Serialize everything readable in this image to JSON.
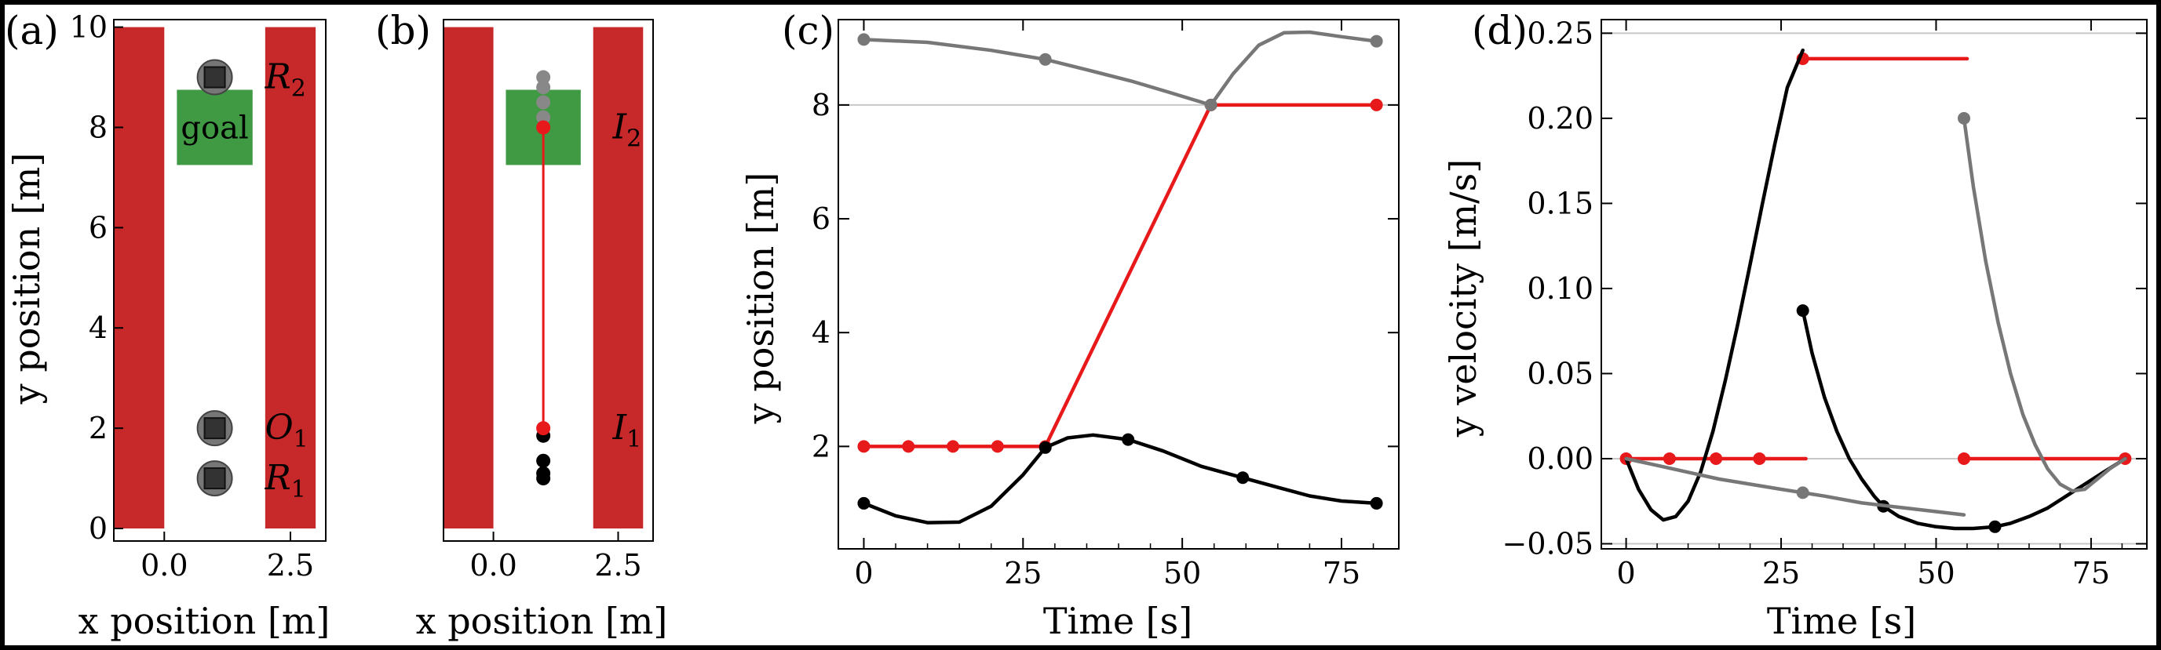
{
  "chart_data": [
    {
      "panel": "(a)",
      "type": "scatter",
      "xlabel": "x position [m]",
      "ylabel": "y position [m]",
      "xlim": [
        -1.0,
        3.2
      ],
      "ylim": [
        -0.25,
        10.15
      ],
      "xticks": [
        "0.0",
        "2.5"
      ],
      "yticks": [
        "0",
        "2",
        "4",
        "6",
        "8",
        "10"
      ],
      "walls": [
        {
          "x": [
            -1.0,
            0.0
          ],
          "y": [
            0,
            10
          ]
        },
        {
          "x": [
            2.0,
            3.0
          ],
          "y": [
            0,
            10
          ]
        }
      ],
      "goal": {
        "label": "goal",
        "x": [
          0.25,
          1.75
        ],
        "y": [
          7.25,
          8.75
        ]
      },
      "robots": [
        {
          "name": "R2",
          "label": "R",
          "sub": "2",
          "x": 1.0,
          "y": 9.0
        },
        {
          "name": "O1",
          "label": "O",
          "sub": "1",
          "x": 1.0,
          "y": 2.0
        },
        {
          "name": "R1",
          "label": "R",
          "sub": "1",
          "x": 1.0,
          "y": 1.0
        }
      ]
    },
    {
      "panel": "(b)",
      "type": "scatter",
      "xlabel": "x position [m]",
      "ylabel": "",
      "xlim": [
        -1.0,
        3.2
      ],
      "ylim": [
        -0.25,
        10.15
      ],
      "xticks": [
        "0.0",
        "2.5"
      ],
      "walls": [
        {
          "x": [
            -1.0,
            0.0
          ],
          "y": [
            0,
            10
          ]
        },
        {
          "x": [
            2.0,
            3.0
          ],
          "y": [
            0,
            10
          ]
        }
      ],
      "goal": {
        "x": [
          0.25,
          1.75
        ],
        "y": [
          7.25,
          8.75
        ]
      },
      "path": {
        "x": [
          1.0,
          1.0
        ],
        "y": [
          2.0,
          8.0
        ],
        "color": "#e8191a"
      },
      "points": [
        {
          "series": "black",
          "x": 1.0,
          "y": 1.0
        },
        {
          "series": "black",
          "x": 1.0,
          "y": 1.1
        },
        {
          "series": "black",
          "x": 1.0,
          "y": 1.35
        },
        {
          "series": "black",
          "x": 1.0,
          "y": 1.85
        },
        {
          "series": "red",
          "x": 1.0,
          "y": 2.0
        },
        {
          "series": "gray",
          "x": 1.0,
          "y": 9.0
        },
        {
          "series": "gray",
          "x": 1.0,
          "y": 8.8
        },
        {
          "series": "gray",
          "x": 1.0,
          "y": 8.5
        },
        {
          "series": "gray",
          "x": 1.0,
          "y": 8.2
        },
        {
          "series": "red",
          "x": 1.0,
          "y": 8.0
        }
      ],
      "annotations": [
        {
          "name": "I1",
          "label": "I",
          "sub": "1",
          "x": 2.55,
          "y": 2.0
        },
        {
          "name": "I2",
          "label": "I",
          "sub": "2",
          "x": 2.55,
          "y": 8.0
        }
      ]
    },
    {
      "panel": "(c)",
      "type": "line",
      "xlabel": "Time [s]",
      "ylabel": "y position [m]",
      "xlim": [
        -4,
        84
      ],
      "ylim": [
        0.2,
        9.5
      ],
      "xticks": [
        0,
        25,
        50,
        75
      ],
      "yticks": [
        2,
        4,
        6,
        8
      ],
      "reference_lines": [
        8
      ],
      "series": [
        {
          "color": "#e8191a",
          "x": [
            0,
            7,
            14,
            21,
            28.5,
            54.5,
            80.5
          ],
          "y": [
            2.0,
            2.0,
            2.0,
            2.0,
            2.0,
            8.0,
            8.0
          ],
          "markers_x": [
            0,
            7,
            14,
            21,
            28.5,
            54.5,
            80.5
          ],
          "markers_y": [
            2.0,
            2.0,
            2.0,
            2.0,
            2.0,
            8.0,
            8.0
          ]
        },
        {
          "color": "#000000",
          "x": [
            0,
            5,
            10,
            15,
            20,
            25,
            28.5,
            32,
            36,
            41.5,
            47,
            53,
            59.5,
            65,
            70,
            75,
            80.5
          ],
          "y": [
            1.0,
            0.78,
            0.66,
            0.67,
            0.95,
            1.5,
            1.98,
            2.15,
            2.2,
            2.12,
            1.92,
            1.65,
            1.45,
            1.28,
            1.13,
            1.04,
            1.0
          ],
          "markers_x": [
            0,
            28.5,
            41.5,
            59.5,
            80.5
          ],
          "markers_y": [
            1.0,
            1.98,
            2.12,
            1.45,
            1.0
          ]
        },
        {
          "color": "#777777",
          "x": [
            0,
            10,
            20,
            28.5,
            35,
            42,
            48,
            54.5,
            58,
            62,
            66,
            70,
            75,
            80.5
          ],
          "y": [
            9.15,
            9.1,
            8.96,
            8.8,
            8.62,
            8.42,
            8.22,
            8.0,
            8.55,
            9.05,
            9.27,
            9.28,
            9.2,
            9.12
          ],
          "markers_x": [
            0,
            28.5,
            54.5,
            80.5
          ],
          "markers_y": [
            9.15,
            8.8,
            8.0,
            9.12
          ]
        }
      ]
    },
    {
      "panel": "(d)",
      "type": "line",
      "xlabel": "Time [s]",
      "ylabel": "y velocity [m/s]",
      "xlim": [
        -4,
        84
      ],
      "ylim": [
        -0.053,
        0.258
      ],
      "xticks": [
        0,
        25,
        50,
        75
      ],
      "yticks": [
        "−0.05",
        "0.00",
        "0.05",
        "0.10",
        "0.15",
        "0.20",
        "0.25"
      ],
      "reference_lines": [
        0.0,
        0.25,
        -0.05
      ],
      "series": [
        {
          "color": "#e8191a",
          "x": [
            0,
            29
          ],
          "y": [
            0.0,
            0.0
          ],
          "markers_x": [
            0,
            7,
            14.5,
            21.5
          ],
          "markers_y": [
            0,
            0,
            0,
            0
          ]
        },
        {
          "color": "#e8191a",
          "x": [
            28.5,
            55
          ],
          "y": [
            0.235,
            0.235
          ],
          "markers_x": [
            28.5
          ],
          "markers_y": [
            0.235
          ]
        },
        {
          "color": "#e8191a",
          "x": [
            54.5,
            81
          ],
          "y": [
            0.0,
            0.0
          ],
          "markers_x": [
            54.5,
            80.5
          ],
          "markers_y": [
            0,
            0
          ]
        },
        {
          "color": "#000000",
          "x": [
            0,
            2,
            4,
            6,
            8,
            10,
            12,
            14,
            16,
            18,
            20,
            22,
            24,
            26,
            28.5
          ],
          "y": [
            0.0,
            -0.018,
            -0.03,
            -0.036,
            -0.034,
            -0.025,
            -0.008,
            0.016,
            0.046,
            0.079,
            0.114,
            0.15,
            0.185,
            0.218,
            0.24
          ],
          "markers_x": [],
          "markers_y": []
        },
        {
          "color": "#000000",
          "x": [
            28.5,
            30,
            32,
            34,
            36,
            38,
            40,
            41.5,
            44,
            47,
            50,
            53,
            56,
            59.5,
            62,
            65,
            68,
            71,
            74,
            77,
            80.5
          ],
          "y": [
            0.087,
            0.062,
            0.036,
            0.016,
            0.0,
            -0.012,
            -0.022,
            -0.028,
            -0.034,
            -0.038,
            -0.04,
            -0.041,
            -0.041,
            -0.04,
            -0.038,
            -0.034,
            -0.029,
            -0.022,
            -0.015,
            -0.008,
            0.0
          ],
          "markers_x": [
            28.5,
            41.5,
            59.5
          ],
          "markers_y": [
            0.087,
            -0.028,
            -0.04
          ]
        },
        {
          "color": "#777777",
          "x": [
            0,
            5,
            10,
            15,
            20,
            25,
            28.5,
            32,
            38,
            45,
            54.5
          ],
          "y": [
            0.0,
            -0.004,
            -0.008,
            -0.012,
            -0.015,
            -0.018,
            -0.02,
            -0.022,
            -0.026,
            -0.029,
            -0.033
          ],
          "markers_x": [
            28.5
          ],
          "markers_y": [
            -0.02
          ]
        },
        {
          "color": "#777777",
          "x": [
            54.5,
            56,
            58,
            60,
            62,
            64,
            66,
            68,
            70,
            72,
            74,
            76,
            78,
            80.5
          ],
          "y": [
            0.2,
            0.16,
            0.116,
            0.08,
            0.05,
            0.026,
            0.008,
            -0.006,
            -0.015,
            -0.019,
            -0.018,
            -0.012,
            -0.006,
            0.0
          ],
          "markers_x": [
            54.5
          ],
          "markers_y": [
            0.2
          ]
        }
      ]
    }
  ]
}
